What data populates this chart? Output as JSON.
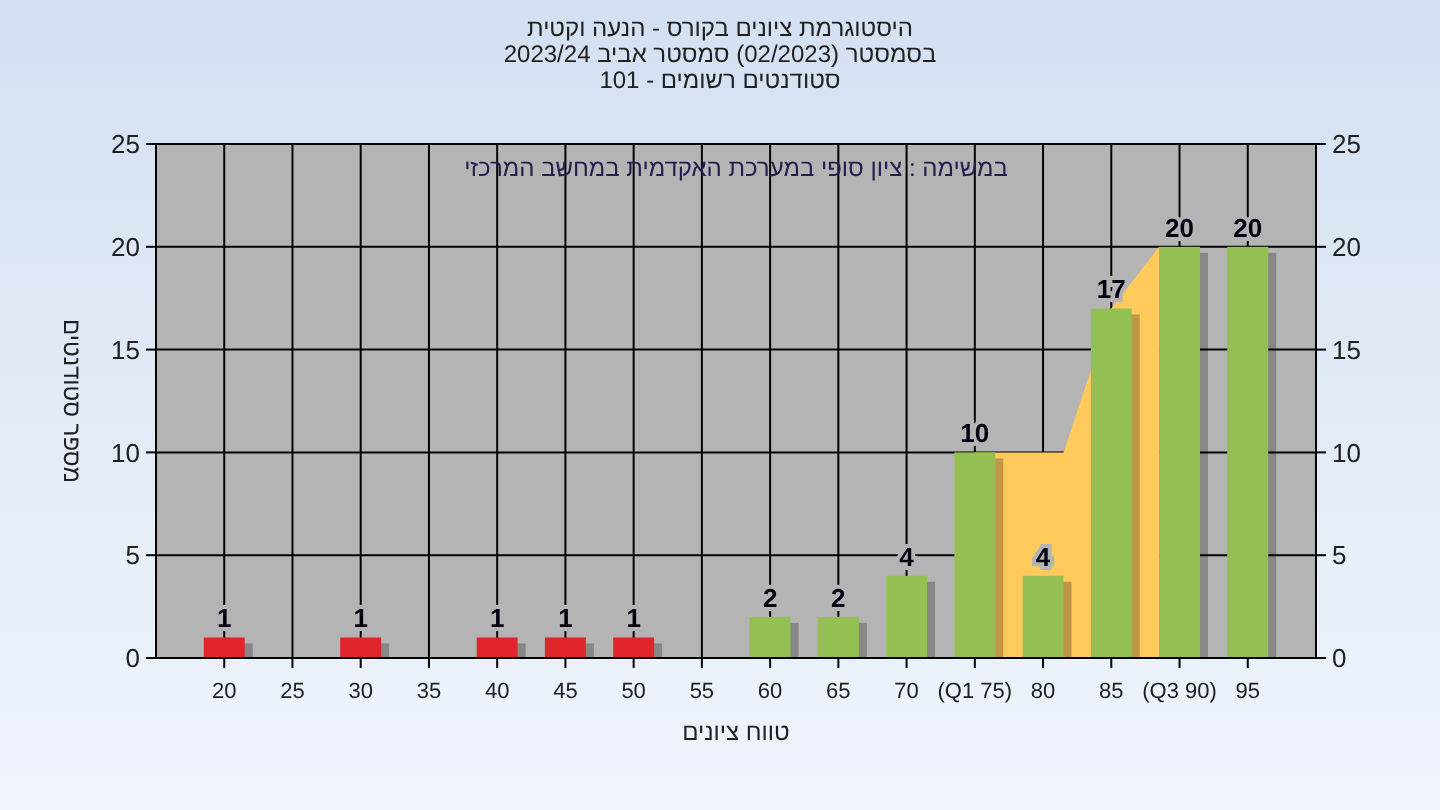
{
  "chart_data": {
    "type": "bar",
    "title": "היסטוגרמת ציונים בקורס - הנעה וקטית",
    "subtitle": "בסמסטר (02/2023) סמסטר אביב 2023/24\nסטודנטים רשומים - 101",
    "xlabel": "טווח ציונים",
    "ylabel": "מספר סטודנטים",
    "annotations": [
      "במשימה : ציון סופי במערכת האקדמית במחשב המרכזי"
    ],
    "series": [
      {
        "type": "area",
        "color": "#ffc95c",
        "x": [
          75,
          81.5,
          85,
          88.5
        ],
        "values": [
          10,
          10,
          17,
          20
        ]
      },
      {
        "x": [
          20,
          30,
          40,
          45,
          50,
          60,
          65,
          70,
          75,
          80,
          85,
          90,
          95
        ],
        "values": [
          1,
          1,
          1,
          1,
          1,
          2,
          2,
          4,
          10,
          4,
          17,
          20,
          20
        ],
        "value_labels": [
          "1",
          "1",
          "1",
          "1",
          "1",
          "2",
          "2",
          "4",
          "10",
          "4",
          "17",
          "20",
          "20"
        ],
        "colors": [
          "#e0262a",
          "#e0262a",
          "#e0262a",
          "#e0262a",
          "#e0262a",
          "#94bf52",
          "#94bf52",
          "#94bf52",
          "#94bf52",
          "#94bf52",
          "#94bf52",
          "#94bf52",
          "#94bf52"
        ]
      }
    ],
    "xlim": [
      15,
      100
    ],
    "xticks": [
      20,
      25,
      30,
      35,
      40,
      45,
      50,
      55,
      60,
      65,
      70,
      {
        "value": 75,
        "label": "(Q1 75)"
      },
      80,
      85,
      {
        "value": 90,
        "label": "(Q3 90)"
      },
      95
    ],
    "ylim": [
      0,
      25
    ],
    "yticks": [
      0,
      5,
      10,
      15,
      20,
      25
    ],
    "y2lim": [
      0,
      25
    ],
    "y2ticks": [
      0,
      5,
      10,
      15,
      20,
      25
    ],
    "grid": true
  }
}
